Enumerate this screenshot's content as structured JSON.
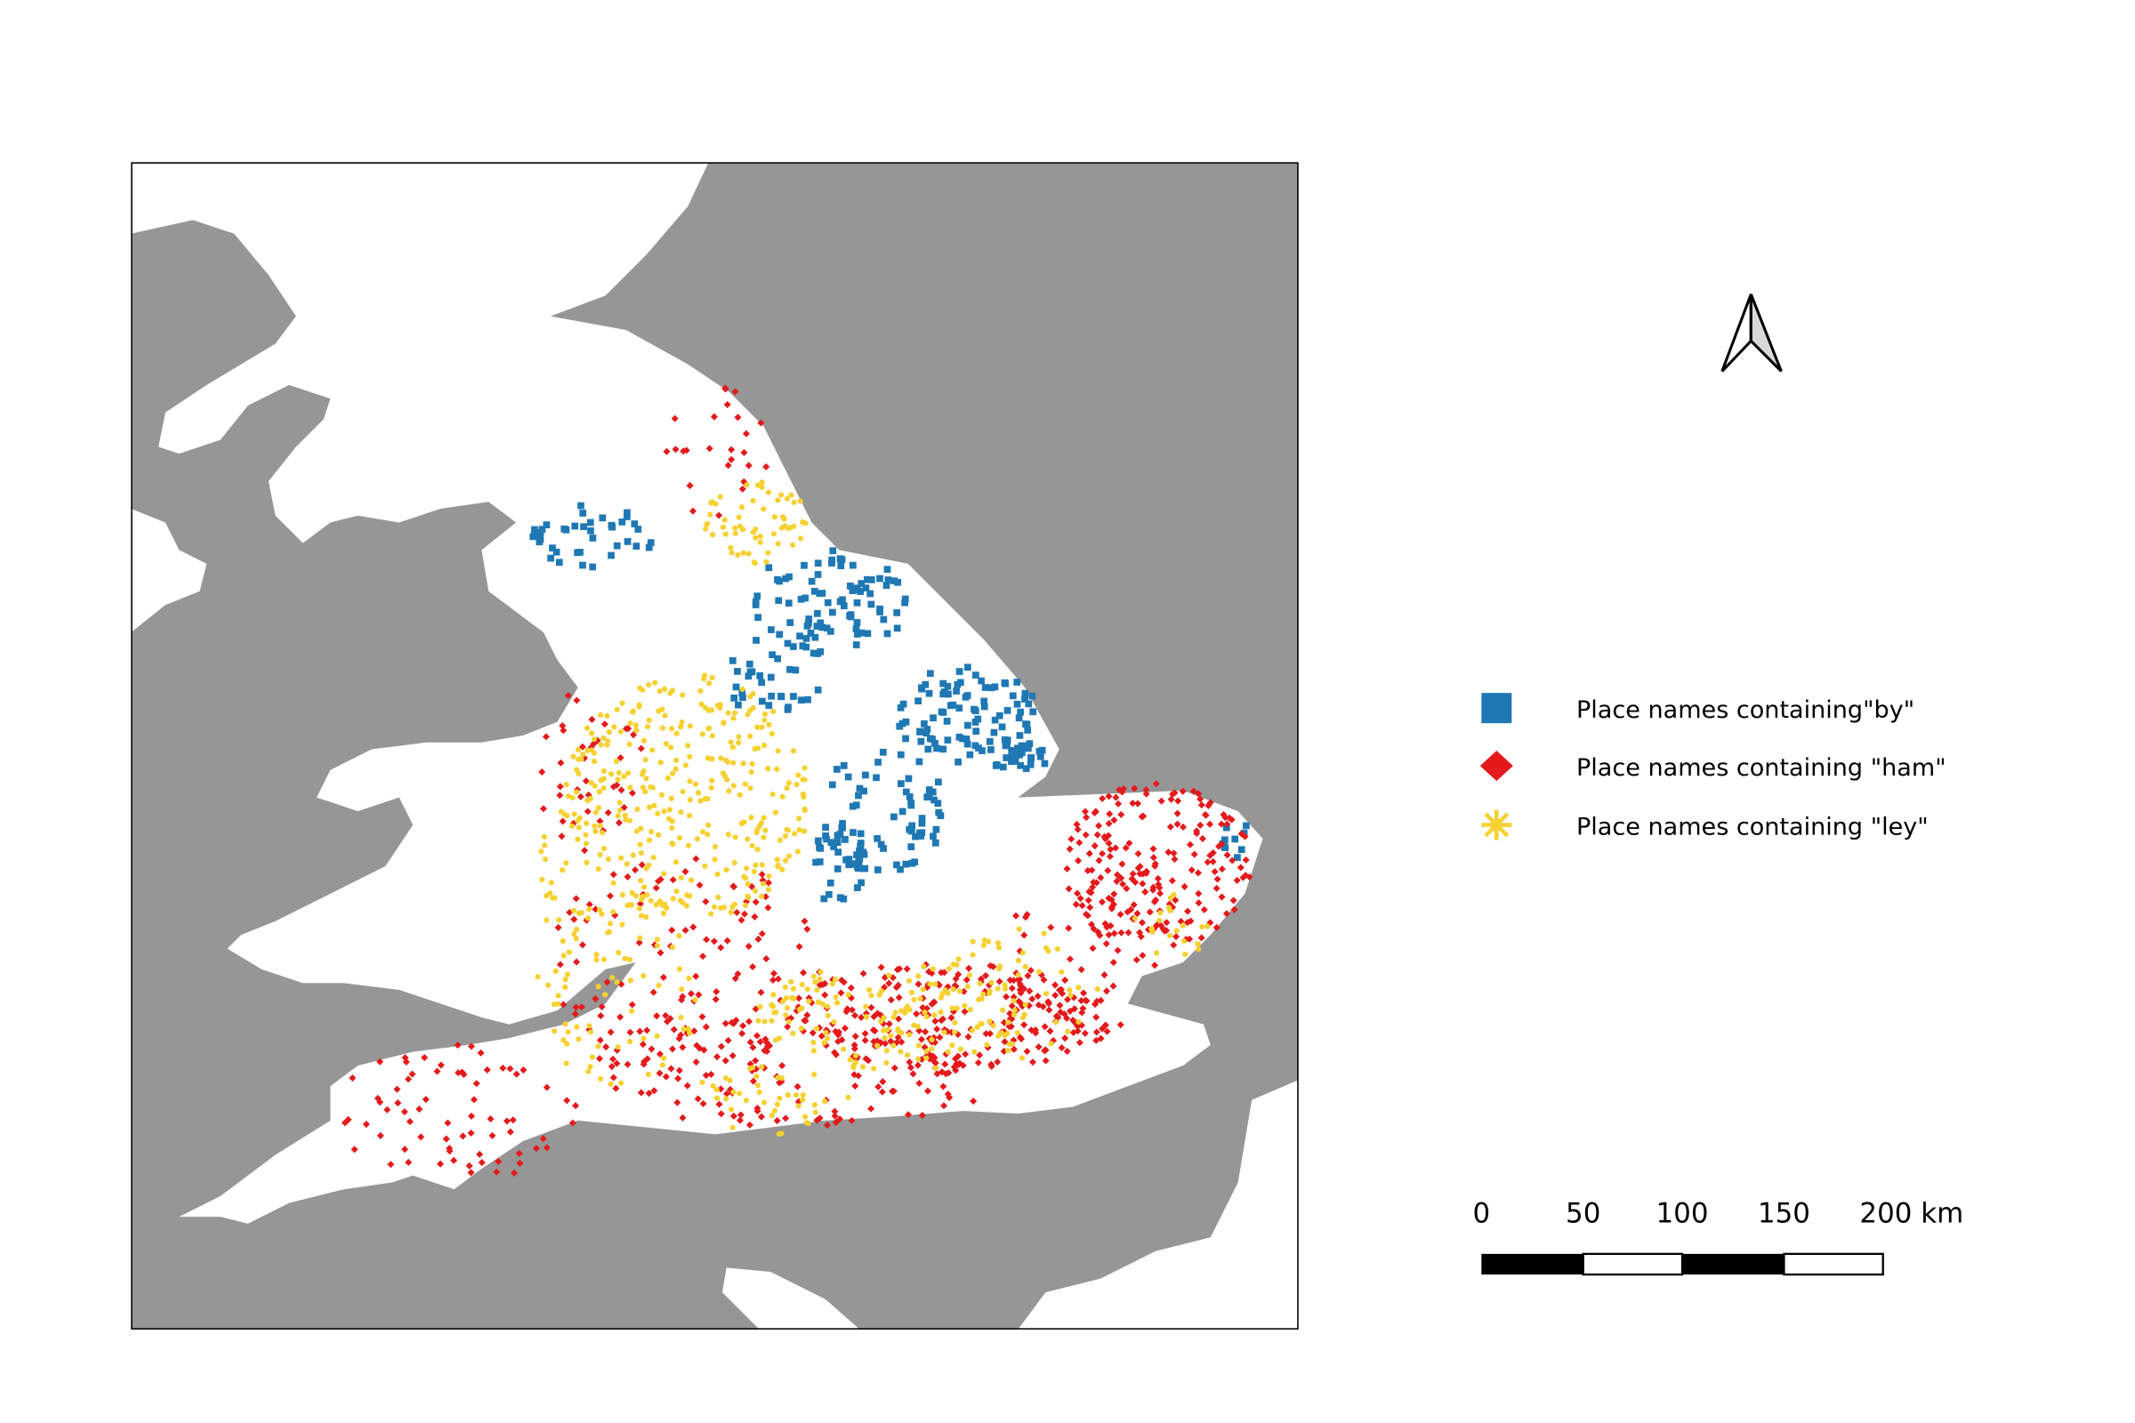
{
  "map": {
    "sea_color": "#969696",
    "land_color": "#ffffff"
  },
  "legend": {
    "items": [
      {
        "label": "Place names containing\"by\"",
        "symbol": "square",
        "color": "#1f78b4"
      },
      {
        "label": "Place names containing \"ham\"",
        "symbol": "diamond",
        "color": "#e31a1c"
      },
      {
        "label": "Place names containing \"ley\"",
        "symbol": "asterisk",
        "color": "#f5d132"
      }
    ]
  },
  "north_arrow": {
    "icon": "north-arrow-icon"
  },
  "scale_bar": {
    "labels": [
      "0",
      "50",
      "100",
      "150",
      "200 km"
    ]
  }
}
